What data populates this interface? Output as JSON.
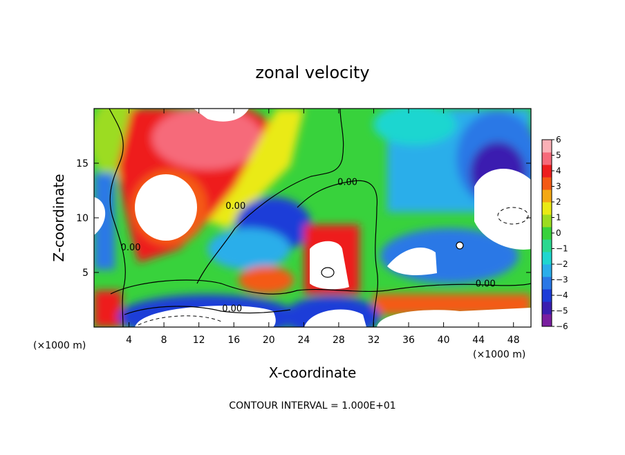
{
  "chart_data": {
    "type": "heatmap",
    "title": "zonal velocity",
    "xlabel": "X-coordinate",
    "ylabel": "Z-coordinate",
    "x_unit": "(×1000 m)",
    "z_unit": "(×1000 m)",
    "xlim": [
      0,
      50
    ],
    "ylim": [
      0,
      20
    ],
    "x_ticks": [
      4,
      8,
      12,
      16,
      20,
      24,
      28,
      32,
      36,
      40,
      44,
      48
    ],
    "y_ticks": [
      5,
      10,
      15
    ],
    "colorbar": {
      "range": [
        -6,
        6
      ],
      "ticks": [
        6,
        5,
        4,
        3,
        2,
        1,
        0,
        -1,
        -2,
        -3,
        -4,
        -5,
        -6
      ],
      "tick_labels": [
        "6",
        "5",
        "4",
        "3",
        "2",
        "1",
        "0",
        "−1",
        "−2",
        "−3",
        "−4",
        "−5",
        "−6"
      ],
      "colors": [
        "#7a1fa0",
        "#3a1fb0",
        "#1c3cd8",
        "#2a78e6",
        "#2aaeea",
        "#1fd6d0",
        "#2ad890",
        "#38d23c",
        "#9cdc20",
        "#eaea14",
        "#f4a814",
        "#f45a14",
        "#ee1e1e",
        "#f66a7a",
        "#fbb0b6"
      ]
    },
    "contour_labels": [
      {
        "text": "0.00",
        "x": 4.2,
        "z": 7.2
      },
      {
        "text": "0.00",
        "x": 16.2,
        "z": 11.0
      },
      {
        "text": "0.00",
        "x": 29.0,
        "z": 13.2
      },
      {
        "text": "0.00",
        "x": 44.8,
        "z": 3.9
      },
      {
        "text": "0.00",
        "x": 15.8,
        "z": 1.6
      }
    ],
    "contour_interval": "CONTOUR INTERVAL = 1.000E+01"
  }
}
